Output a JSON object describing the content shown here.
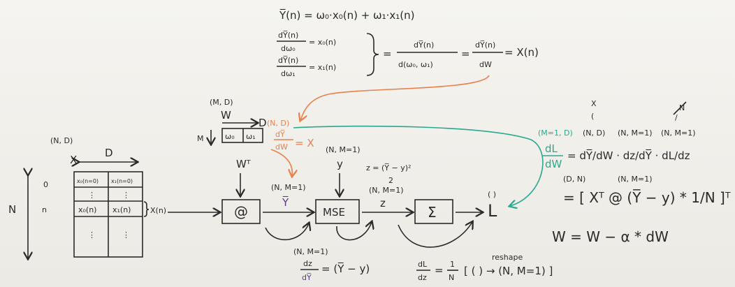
{
  "top": {
    "eq1": "Y̅(n) = ω₀·x₀(n) + ω₁·x₁(n)",
    "deriv0_num": "dY̅(n)",
    "deriv0_den": "dω₀",
    "deriv0_rhs": "= x₀(n)",
    "deriv1_num": "dY̅(n)",
    "deriv1_den": "dω₁",
    "deriv1_rhs": "= x₁(n)",
    "combined_num": "dY̅(n)",
    "combined_den": "d(ω₀, ω₁)",
    "dw_num": "dY̅(n)",
    "dw_den": "dW",
    "dw_rhs": "= X(n)"
  },
  "weights": {
    "shape": "(M, D)",
    "label": "W",
    "d_label": "D",
    "d_shape": "(N, D)",
    "m_label": "M",
    "cell0": "ω₀",
    "cell1": "ω₁",
    "dy_dw_num": "dY̅",
    "dy_dw_den": "dW",
    "dy_dw_rhs": "= X",
    "wt": "Wᵀ"
  },
  "matrix": {
    "shape": "(N, D)",
    "label": "X",
    "d_label": "D",
    "n_label": "N",
    "row0_idx": "0",
    "row_n_idx": "n",
    "cells": [
      "x₀(n=0)",
      "x₁(n=0)",
      "x₀(n)",
      "x₁(n)"
    ],
    "row_label": "X(n)"
  },
  "flow": {
    "matmul": "@",
    "y_shape": "(N, M=1)",
    "y_bar": "Y̅",
    "y_true_shape": "(N, M=1)",
    "y_true": "y",
    "mse": "MSE",
    "z_formula": "z = (Y̅ − y)²",
    "z_den": "2",
    "z_shape": "(N, M=1)",
    "z": "z",
    "sum": "Σ",
    "l_shape": "( )",
    "l": "L"
  },
  "bottom": {
    "dz_shape": "(N, M=1)",
    "dz_num": "dz",
    "dz_den": "dY̅",
    "dz_rhs": "= (Y̅ − y)",
    "dl_num": "dL",
    "dl_den": "dz",
    "dl_eq": "=",
    "dl_frac_num": "1",
    "dl_frac_den": "N",
    "reshape_note": "reshape",
    "reshape": "[ ( ) → (N, M=1) ]"
  },
  "right": {
    "x_mark": "X",
    "crossed": "N",
    "shape_lhs": "(M=1, D)",
    "shape_a": "(N, D)",
    "shape_b": "(N, M=1)",
    "shape_c": "(N, M=1)",
    "dl_dw_num": "dL",
    "dl_dw_den": "dW",
    "chain": "= dY̅/dW · dz/dY̅ · dL/dz",
    "shape_dn": "(D, N)",
    "shape_nm": "(N, M=1)",
    "final": "= [ Xᵀ @ (Y̅ − y) * 1/N ]ᵀ",
    "update": "W  =  W − α * dW"
  },
  "colors": {
    "ink": "#2a2a2a",
    "purple": "#5b3a8c",
    "orange": "#e8804f",
    "teal": "#2aa890"
  }
}
